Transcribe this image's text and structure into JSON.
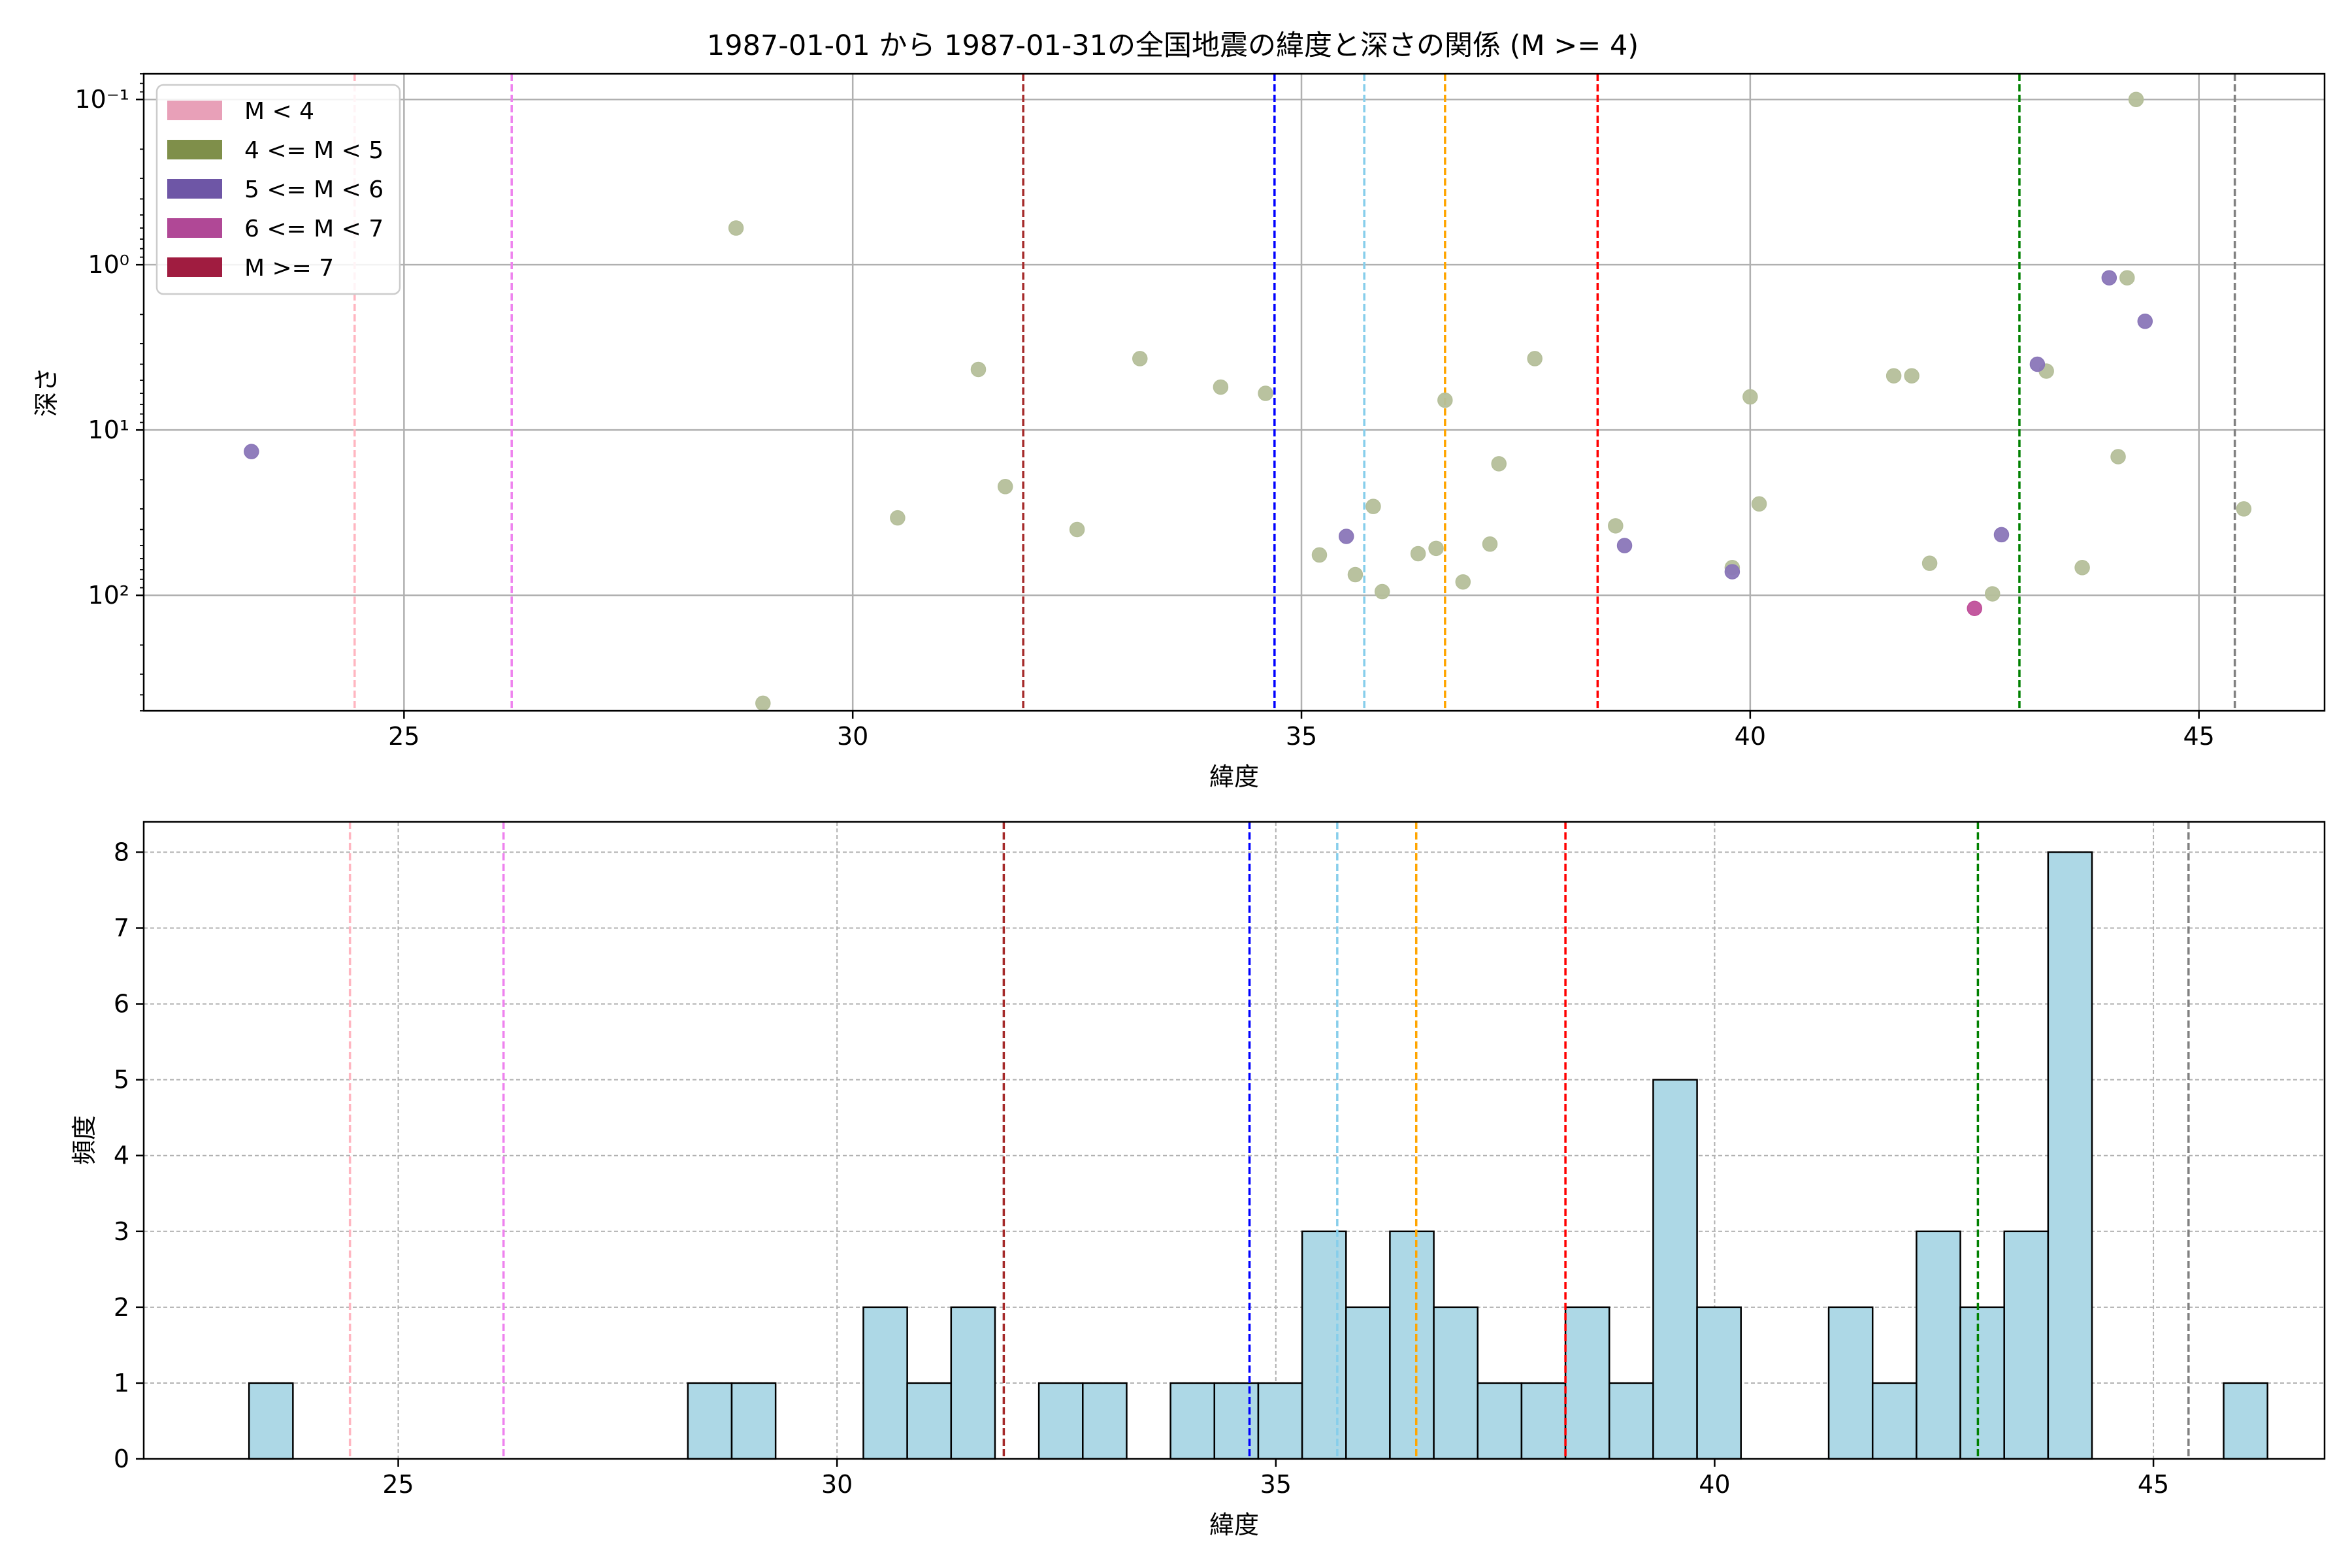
{
  "chart_data": [
    {
      "type": "scatter",
      "title": "1987-01-01 から 1987-01-31の全国地震の緯度と深さの関係 (M >= 4)",
      "xlabel": "緯度",
      "ylabel": "深さ",
      "xlim": [
        22.1,
        46.4
      ],
      "ylim_log_inverted": [
        500,
        0.07
      ],
      "yscale": "log",
      "y_inverted": true,
      "grid": true,
      "legend_position": "upper-left",
      "xticks": [
        25,
        30,
        35,
        40,
        45
      ],
      "xtick_labels": [
        "25",
        "30",
        "35",
        "40",
        "45"
      ],
      "yticks": [
        0.1,
        1,
        10,
        100
      ],
      "ytick_labels": [
        "10⁻¹",
        "10⁰",
        "10¹",
        "10²"
      ],
      "legend": [
        {
          "label": "M < 4",
          "color": "#e8a0b8"
        },
        {
          "label": "4 <= M < 5",
          "color": "#7f8f4a"
        },
        {
          "label": "5 <= M < 6",
          "color": "#6e56a6"
        },
        {
          "label": "6 <= M < 7",
          "color": "#b04896"
        },
        {
          "label": "M >= 7",
          "color": "#a01c40"
        }
      ],
      "vlines": [
        {
          "x": 24.45,
          "color": "#ffb6c1"
        },
        {
          "x": 26.2,
          "color": "#ee82ee"
        },
        {
          "x": 31.9,
          "color": "#a52a2a"
        },
        {
          "x": 34.7,
          "color": "#0000ff"
        },
        {
          "x": 35.7,
          "color": "#87ceeb"
        },
        {
          "x": 36.6,
          "color": "#ffa500"
        },
        {
          "x": 38.3,
          "color": "#ff0000"
        },
        {
          "x": 43.0,
          "color": "#008000"
        },
        {
          "x": 45.4,
          "color": "#808080"
        }
      ],
      "series": [
        {
          "color": "#b5bf9a",
          "points": [
            [
              28.7,
              0.6
            ],
            [
              29.0,
              450
            ],
            [
              30.5,
              34
            ],
            [
              31.4,
              4.3
            ],
            [
              31.7,
              22
            ],
            [
              32.5,
              40
            ],
            [
              33.2,
              3.7
            ],
            [
              34.1,
              5.5
            ],
            [
              34.6,
              6.0
            ],
            [
              35.2,
              57
            ],
            [
              35.6,
              75
            ],
            [
              35.8,
              29
            ],
            [
              35.9,
              95
            ],
            [
              36.3,
              56
            ],
            [
              36.5,
              52
            ],
            [
              36.6,
              6.6
            ],
            [
              36.8,
              83
            ],
            [
              37.1,
              49
            ],
            [
              37.2,
              16
            ],
            [
              37.6,
              3.7
            ],
            [
              38.5,
              38
            ],
            [
              39.8,
              68
            ],
            [
              40.0,
              6.3
            ],
            [
              40.1,
              28
            ],
            [
              41.6,
              4.7
            ],
            [
              41.8,
              4.7
            ],
            [
              42.0,
              64
            ],
            [
              42.7,
              98
            ],
            [
              43.3,
              4.4
            ],
            [
              43.7,
              68
            ],
            [
              44.1,
              14.5
            ],
            [
              44.2,
              1.2
            ],
            [
              44.3,
              0.1
            ],
            [
              45.5,
              30
            ]
          ]
        },
        {
          "color": "#8a76b8",
          "points": [
            [
              23.3,
              13.5
            ],
            [
              35.5,
              44
            ],
            [
              38.6,
              50
            ],
            [
              39.8,
              72
            ],
            [
              42.8,
              43
            ],
            [
              43.2,
              4.0
            ],
            [
              44.0,
              1.2
            ],
            [
              44.4,
              2.2
            ]
          ]
        },
        {
          "color": "#c0509a",
          "points": [
            [
              42.5,
              120
            ]
          ]
        }
      ]
    },
    {
      "type": "bar",
      "xlabel": "緯度",
      "ylabel": "頻度",
      "xlim": [
        22.1,
        46.95
      ],
      "ylim": [
        0,
        8.4
      ],
      "grid": true,
      "xticks": [
        25,
        30,
        35,
        40,
        45
      ],
      "xtick_labels": [
        "25",
        "30",
        "35",
        "40",
        "45"
      ],
      "yticks": [
        0,
        1,
        2,
        3,
        4,
        5,
        6,
        7,
        8
      ],
      "ytick_labels": [
        "0",
        "1",
        "2",
        "3",
        "4",
        "5",
        "6",
        "7",
        "8"
      ],
      "bin_start": 23.3,
      "bin_width": 0.5,
      "counts": [
        1,
        0,
        0,
        0,
        0,
        0,
        0,
        0,
        0,
        0,
        1,
        1,
        0,
        0,
        2,
        1,
        2,
        0,
        1,
        1,
        0,
        1,
        1,
        1,
        3,
        2,
        3,
        2,
        1,
        1,
        2,
        1,
        5,
        2,
        0,
        0,
        2,
        1,
        3,
        2,
        3,
        8,
        0,
        0,
        0,
        1
      ],
      "bar_color": "#add8e6",
      "vlines": [
        {
          "x": 24.45,
          "color": "#ffb6c1"
        },
        {
          "x": 26.2,
          "color": "#ee82ee"
        },
        {
          "x": 31.9,
          "color": "#a52a2a"
        },
        {
          "x": 34.7,
          "color": "#0000ff"
        },
        {
          "x": 35.7,
          "color": "#87ceeb"
        },
        {
          "x": 36.6,
          "color": "#ffa500"
        },
        {
          "x": 38.3,
          "color": "#ff0000"
        },
        {
          "x": 43.0,
          "color": "#008000"
        },
        {
          "x": 45.4,
          "color": "#808080"
        }
      ]
    }
  ]
}
